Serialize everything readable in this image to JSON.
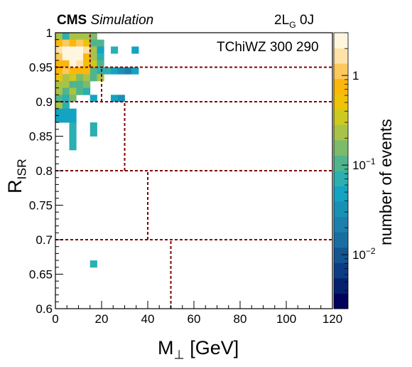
{
  "header": {
    "cms_bold": "CMS",
    "cms_italic": "Simulation",
    "region_main": "2L",
    "region_sub": "G",
    "region_jets": " 0J",
    "model": "TChiWZ 300 290"
  },
  "colors": {
    "boundary_lines": "#800000",
    "palette": [
      "#03015b",
      "#04206f",
      "#0a3d84",
      "#115690",
      "#1a6da0",
      "#1d80ac",
      "#1891b5",
      "#14a3c0",
      "#2cafb1",
      "#50b58d",
      "#7cbb6a",
      "#a8c347",
      "#cec91f",
      "#eec308",
      "#fdb70a",
      "#fdc85c",
      "#fee2a8",
      "#fff6e0"
    ]
  },
  "chart_data": {
    "type": "heatmap",
    "title": "",
    "xlabel_main": "M",
    "xlabel_symbol": "⊥",
    "xlabel_units": " [GeV]",
    "ylabel_main": "R",
    "ylabel_sub": "ISR",
    "zlabel": "number of events",
    "xlim": [
      0,
      120
    ],
    "ylim": [
      0.6,
      1.0
    ],
    "zlim": [
      0.0025,
      3
    ],
    "zscale": "log",
    "xbin_width": 3,
    "ybin_width": 0.01,
    "xticks": [
      0,
      20,
      40,
      60,
      80,
      100,
      120
    ],
    "xtick_labels": [
      "0",
      "20",
      "40",
      "60",
      "80",
      "100",
      "120"
    ],
    "yticks": [
      0.6,
      0.65,
      0.7,
      0.75,
      0.8,
      0.85,
      0.9,
      0.95,
      1.0
    ],
    "ytick_labels": [
      "0.6",
      "0.65",
      "0.7",
      "0.75",
      "0.8",
      "0.85",
      "0.9",
      "0.95",
      "1"
    ],
    "zticks": [
      0.01,
      0.1,
      1
    ],
    "ztick_labels": [
      {
        "mantissa": "10",
        "exponent": "−2"
      },
      {
        "mantissa": "10",
        "exponent": "−1"
      },
      {
        "mantissa": "1",
        "exponent": ""
      }
    ],
    "cells": [
      {
        "x": 0,
        "y": 0.99,
        "z": 0.25
      },
      {
        "x": 3,
        "y": 0.99,
        "z": 0.08
      },
      {
        "x": 6,
        "y": 0.99,
        "z": 0.2
      },
      {
        "x": 9,
        "y": 0.99,
        "z": 0.2
      },
      {
        "x": 12,
        "y": 0.99,
        "z": 0.2
      },
      {
        "x": 15,
        "y": 0.99,
        "z": 0.15
      },
      {
        "x": 0,
        "y": 0.98,
        "z": 0.9
      },
      {
        "x": 3,
        "y": 0.98,
        "z": 1.3
      },
      {
        "x": 6,
        "y": 0.98,
        "z": 0.9
      },
      {
        "x": 9,
        "y": 0.98,
        "z": 1.2
      },
      {
        "x": 12,
        "y": 0.98,
        "z": 0.6
      },
      {
        "x": 15,
        "y": 0.98,
        "z": 0.12
      },
      {
        "x": 18,
        "y": 0.98,
        "z": 0.1
      },
      {
        "x": 0,
        "y": 0.97,
        "z": 1.6
      },
      {
        "x": 3,
        "y": 0.97,
        "z": 2.2
      },
      {
        "x": 6,
        "y": 0.97,
        "z": 2.6
      },
      {
        "x": 9,
        "y": 0.97,
        "z": 2.2
      },
      {
        "x": 12,
        "y": 0.97,
        "z": 1.6
      },
      {
        "x": 15,
        "y": 0.97,
        "z": 0.2
      },
      {
        "x": 18,
        "y": 0.97,
        "z": 0.05
      },
      {
        "x": 24,
        "y": 0.97,
        "z": 0.06
      },
      {
        "x": 33,
        "y": 0.97,
        "z": 0.05
      },
      {
        "x": 0,
        "y": 0.96,
        "z": 1.1
      },
      {
        "x": 3,
        "y": 0.96,
        "z": 2.2
      },
      {
        "x": 6,
        "y": 0.96,
        "z": 2.6
      },
      {
        "x": 9,
        "y": 0.96,
        "z": 2.2
      },
      {
        "x": 12,
        "y": 0.96,
        "z": 0.9
      },
      {
        "x": 15,
        "y": 0.96,
        "z": 0.2
      },
      {
        "x": 18,
        "y": 0.96,
        "z": 0.06
      },
      {
        "x": 0,
        "y": 0.95,
        "z": 0.7
      },
      {
        "x": 3,
        "y": 0.95,
        "z": 0.9
      },
      {
        "x": 6,
        "y": 0.95,
        "z": 2.2
      },
      {
        "x": 9,
        "y": 0.95,
        "z": 1.7
      },
      {
        "x": 12,
        "y": 0.95,
        "z": 0.6
      },
      {
        "x": 15,
        "y": 0.95,
        "z": 0.3
      },
      {
        "x": 18,
        "y": 0.95,
        "z": 0.1
      },
      {
        "x": 0,
        "y": 0.94,
        "z": 0.8
      },
      {
        "x": 3,
        "y": 0.94,
        "z": 1.3
      },
      {
        "x": 6,
        "y": 0.94,
        "z": 0.9
      },
      {
        "x": 9,
        "y": 0.94,
        "z": 0.7
      },
      {
        "x": 12,
        "y": 0.94,
        "z": 0.7
      },
      {
        "x": 15,
        "y": 0.94,
        "z": 0.12
      },
      {
        "x": 18,
        "y": 0.94,
        "z": 0.08
      },
      {
        "x": 21,
        "y": 0.94,
        "z": 0.06
      },
      {
        "x": 24,
        "y": 0.94,
        "z": 0.05
      },
      {
        "x": 27,
        "y": 0.94,
        "z": 0.035
      },
      {
        "x": 30,
        "y": 0.94,
        "z": 0.02
      },
      {
        "x": 33,
        "y": 0.94,
        "z": 0.05
      },
      {
        "x": 0,
        "y": 0.93,
        "z": 0.6
      },
      {
        "x": 3,
        "y": 0.93,
        "z": 0.25
      },
      {
        "x": 6,
        "y": 0.93,
        "z": 0.4
      },
      {
        "x": 9,
        "y": 0.93,
        "z": 0.15
      },
      {
        "x": 12,
        "y": 0.93,
        "z": 0.2
      },
      {
        "x": 15,
        "y": 0.93,
        "z": 0.12
      },
      {
        "x": 18,
        "y": 0.93,
        "z": 0.25
      },
      {
        "x": 0,
        "y": 0.92,
        "z": 0.2
      },
      {
        "x": 3,
        "y": 0.92,
        "z": 0.25
      },
      {
        "x": 6,
        "y": 0.92,
        "z": 0.12
      },
      {
        "x": 9,
        "y": 0.92,
        "z": 0.12
      },
      {
        "x": 12,
        "y": 0.92,
        "z": 0.15
      },
      {
        "x": 0,
        "y": 0.91,
        "z": 0.25
      },
      {
        "x": 3,
        "y": 0.91,
        "z": 0.12
      },
      {
        "x": 6,
        "y": 0.91,
        "z": 0.2
      },
      {
        "x": 9,
        "y": 0.91,
        "z": 0.12
      },
      {
        "x": 12,
        "y": 0.91,
        "z": 0.06
      },
      {
        "x": 0,
        "y": 0.9,
        "z": 0.1
      },
      {
        "x": 3,
        "y": 0.9,
        "z": 0.06
      },
      {
        "x": 6,
        "y": 0.9,
        "z": 0.15
      },
      {
        "x": 15,
        "y": 0.9,
        "z": 0.04
      },
      {
        "x": 24,
        "y": 0.9,
        "z": 0.04
      },
      {
        "x": 27,
        "y": 0.9,
        "z": 0.03
      },
      {
        "x": 0,
        "y": 0.89,
        "z": 0.25
      },
      {
        "x": 3,
        "y": 0.89,
        "z": 0.06
      },
      {
        "x": 0,
        "y": 0.88,
        "z": 0.05
      },
      {
        "x": 3,
        "y": 0.88,
        "z": 0.05
      },
      {
        "x": 6,
        "y": 0.88,
        "z": 0.05
      },
      {
        "x": 0,
        "y": 0.87,
        "z": 0.05
      },
      {
        "x": 3,
        "y": 0.87,
        "z": 0.05
      },
      {
        "x": 6,
        "y": 0.87,
        "z": 0.05
      },
      {
        "x": 6,
        "y": 0.86,
        "z": 0.06
      },
      {
        "x": 15,
        "y": 0.86,
        "z": 0.08
      },
      {
        "x": 6,
        "y": 0.85,
        "z": 0.06
      },
      {
        "x": 15,
        "y": 0.85,
        "z": 0.08
      },
      {
        "x": 6,
        "y": 0.84,
        "z": 0.06
      },
      {
        "x": 6,
        "y": 0.83,
        "z": 0.06
      },
      {
        "x": 15,
        "y": 0.66,
        "z": 0.06
      }
    ],
    "region_boundaries": [
      {
        "y": 0.7,
        "x_from": 0,
        "x_to": 120
      },
      {
        "y": 0.8,
        "x_from": 0,
        "x_to": 120
      },
      {
        "y": 0.9,
        "x_from": 0,
        "x_to": 120
      },
      {
        "y": 0.95,
        "x_from": 0,
        "x_to": 120
      },
      {
        "x": 50,
        "y_from": 0.6,
        "y_to": 0.7
      },
      {
        "x": 40,
        "y_from": 0.7,
        "y_to": 0.8
      },
      {
        "x": 30,
        "y_from": 0.8,
        "y_to": 0.9
      },
      {
        "x": 20,
        "y_from": 0.9,
        "y_to": 0.95
      },
      {
        "x": 15,
        "y_from": 0.95,
        "y_to": 1.0
      }
    ]
  }
}
